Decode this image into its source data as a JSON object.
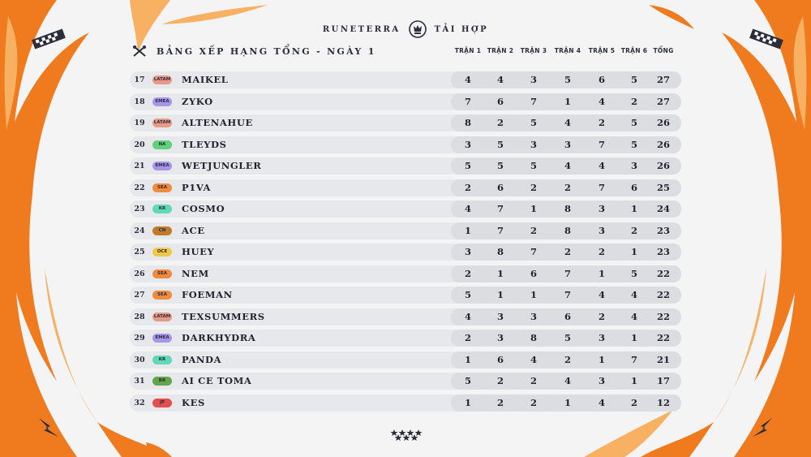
{
  "header": {
    "brand_left": "RUNETERRA",
    "brand_right": "TẢI HỢP",
    "title": "BẢNG XẾP HẠNG TỔNG - NGÀY 1"
  },
  "columns": [
    "TRẬN 1",
    "TRẬN 2",
    "TRẬN 3",
    "TRẬN 4",
    "TRẬN 5",
    "TRẬN 6",
    "TỔNG"
  ],
  "region_colors": {
    "LATAM": "#e89a86",
    "EMEA": "#a996ea",
    "NA": "#62d27a",
    "SEA": "#f08a3c",
    "KR": "#5fd9b8",
    "CN": "#c07a2c",
    "OCE": "#f2c84b",
    "BR": "#63a54a",
    "JP": "#e44d4d"
  },
  "accent": {
    "orange": "#f07a1e",
    "light_orange": "#f8b063",
    "dark": "#2a2d3a"
  },
  "rows": [
    {
      "rank": "17",
      "region": "LATAM",
      "name": "MAIKEL",
      "scores": [
        "4",
        "4",
        "3",
        "5",
        "6",
        "5",
        "27"
      ]
    },
    {
      "rank": "18",
      "region": "EMEA",
      "name": "ZYKO",
      "scores": [
        "7",
        "6",
        "7",
        "1",
        "4",
        "2",
        "27"
      ]
    },
    {
      "rank": "19",
      "region": "LATAM",
      "name": "ALTENAHUE",
      "scores": [
        "8",
        "2",
        "5",
        "4",
        "2",
        "5",
        "26"
      ]
    },
    {
      "rank": "20",
      "region": "NA",
      "name": "TLEYDS",
      "scores": [
        "3",
        "5",
        "3",
        "3",
        "7",
        "5",
        "26"
      ]
    },
    {
      "rank": "21",
      "region": "EMEA",
      "name": "WETJUNGLER",
      "scores": [
        "5",
        "5",
        "5",
        "4",
        "4",
        "3",
        "26"
      ]
    },
    {
      "rank": "22",
      "region": "SEA",
      "name": "P1VA",
      "scores": [
        "2",
        "6",
        "2",
        "2",
        "7",
        "6",
        "25"
      ]
    },
    {
      "rank": "23",
      "region": "KR",
      "name": "COSMO",
      "scores": [
        "4",
        "7",
        "1",
        "8",
        "3",
        "1",
        "24"
      ]
    },
    {
      "rank": "24",
      "region": "CN",
      "name": "ACE",
      "scores": [
        "1",
        "7",
        "2",
        "8",
        "3",
        "2",
        "23"
      ]
    },
    {
      "rank": "25",
      "region": "OCE",
      "name": "HUEY",
      "scores": [
        "3",
        "8",
        "7",
        "2",
        "2",
        "1",
        "23"
      ]
    },
    {
      "rank": "26",
      "region": "SEA",
      "name": "NEM",
      "scores": [
        "2",
        "1",
        "6",
        "7",
        "1",
        "5",
        "22"
      ]
    },
    {
      "rank": "27",
      "region": "SEA",
      "name": "FOEMAN",
      "scores": [
        "5",
        "1",
        "1",
        "7",
        "4",
        "4",
        "22"
      ]
    },
    {
      "rank": "28",
      "region": "LATAM",
      "name": "TEXSUMMERS",
      "scores": [
        "4",
        "3",
        "3",
        "6",
        "2",
        "4",
        "22"
      ]
    },
    {
      "rank": "29",
      "region": "EMEA",
      "name": "DARKHYDRA",
      "scores": [
        "2",
        "3",
        "8",
        "5",
        "3",
        "1",
        "22"
      ]
    },
    {
      "rank": "30",
      "region": "KR",
      "name": "PANDA",
      "scores": [
        "1",
        "6",
        "4",
        "2",
        "1",
        "7",
        "21"
      ]
    },
    {
      "rank": "31",
      "region": "BR",
      "name": "AI CE TOMA",
      "scores": [
        "5",
        "2",
        "2",
        "4",
        "3",
        "1",
        "17"
      ]
    },
    {
      "rank": "32",
      "region": "JP",
      "name": "KES",
      "scores": [
        "1",
        "2",
        "2",
        "1",
        "4",
        "2",
        "12"
      ]
    }
  ]
}
